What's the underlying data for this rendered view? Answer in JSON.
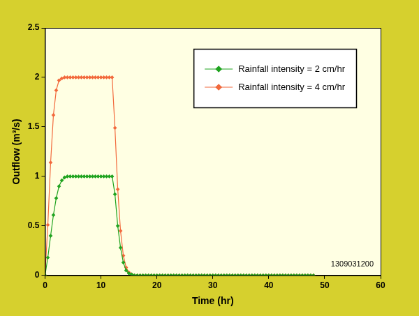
{
  "chart_data": {
    "type": "line",
    "x_label": "Time (hr)",
    "y_label": "Outflow (m³/s)",
    "annotation": "1309031200",
    "x": [
      0,
      0.5,
      1,
      1.5,
      2,
      2.5,
      3,
      3.5,
      4,
      4.5,
      5,
      5.5,
      6,
      6.5,
      7,
      7.5,
      8,
      8.5,
      9,
      9.5,
      10,
      10.5,
      11,
      11.5,
      12,
      12.5,
      13,
      13.5,
      14,
      14.5,
      15,
      15.5,
      16,
      16.5,
      17,
      17.5,
      18,
      18.5,
      19,
      19.5,
      20,
      20.5,
      21,
      21.5,
      22,
      22.5,
      23,
      23.5,
      24,
      24.5,
      25,
      25.5,
      26,
      26.5,
      27,
      27.5,
      28,
      28.5,
      29,
      29.5,
      30,
      30.5,
      31,
      31.5,
      32,
      32.5,
      33,
      33.5,
      34,
      34.5,
      35,
      35.5,
      36,
      36.5,
      37,
      37.5,
      38,
      38.5,
      39,
      39.5,
      40,
      40.5,
      41,
      41.5,
      42,
      42.5,
      43,
      43.5,
      44,
      44.5,
      45,
      45.5,
      46,
      46.5,
      47,
      47.5,
      48
    ],
    "series": [
      {
        "name": "Rainfall intensity = 2 cm/hr",
        "color": "#1fa31f",
        "marker": "diamond",
        "line_style": "solid",
        "values": [
          0,
          0.18,
          0.4,
          0.61,
          0.78,
          0.9,
          0.96,
          0.99,
          1,
          1,
          1,
          1,
          1,
          1,
          1,
          1,
          1,
          1,
          1,
          1,
          1,
          1,
          1,
          1,
          1,
          0.82,
          0.5,
          0.28,
          0.13,
          0.05,
          0.02,
          0.01,
          0,
          0,
          0,
          0,
          0,
          0,
          0,
          0,
          0,
          0,
          0,
          0,
          0,
          0,
          0,
          0,
          0,
          0,
          0,
          0,
          0,
          0,
          0,
          0,
          0,
          0,
          0,
          0,
          0,
          0,
          0,
          0,
          0,
          0,
          0,
          0,
          0,
          0,
          0,
          0,
          0,
          0,
          0,
          0,
          0,
          0,
          0,
          0,
          0,
          0,
          0,
          0,
          0,
          0,
          0,
          0,
          0,
          0,
          0,
          0,
          0,
          0,
          0,
          0,
          0
        ]
      },
      {
        "name": "Rainfall intensity = 4 cm/hr",
        "color": "#f2693c",
        "marker": "diamond",
        "line_style": "solid",
        "values": [
          0,
          0.51,
          1.14,
          1.62,
          1.87,
          1.97,
          1.99,
          2,
          2,
          2,
          2,
          2,
          2,
          2,
          2,
          2,
          2,
          2,
          2,
          2,
          2,
          2,
          2,
          2,
          2,
          1.49,
          0.87,
          0.45,
          0.2,
          0.08,
          0.03,
          0.01,
          0,
          0,
          0,
          0,
          0,
          0,
          0,
          0,
          0,
          0,
          0,
          0,
          0,
          0,
          0,
          0,
          0,
          0,
          0,
          0,
          0,
          0,
          0,
          0,
          0,
          0,
          0,
          0,
          0,
          0,
          0,
          0,
          0,
          0,
          0,
          0,
          0,
          0,
          0,
          0,
          0,
          0,
          0,
          0,
          0,
          0,
          0,
          0,
          0,
          0,
          0,
          0,
          0,
          0,
          0,
          0,
          0,
          0,
          0,
          0,
          0,
          0,
          0,
          0,
          0
        ]
      }
    ],
    "xlim": [
      0,
      60
    ],
    "xticks": [
      0,
      10,
      20,
      30,
      40,
      50,
      60
    ],
    "ylim": [
      0,
      2.5
    ],
    "yticks": [
      0,
      0.5,
      1,
      1.5,
      2,
      2.5
    ],
    "grid": false,
    "legend": "upper right"
  }
}
